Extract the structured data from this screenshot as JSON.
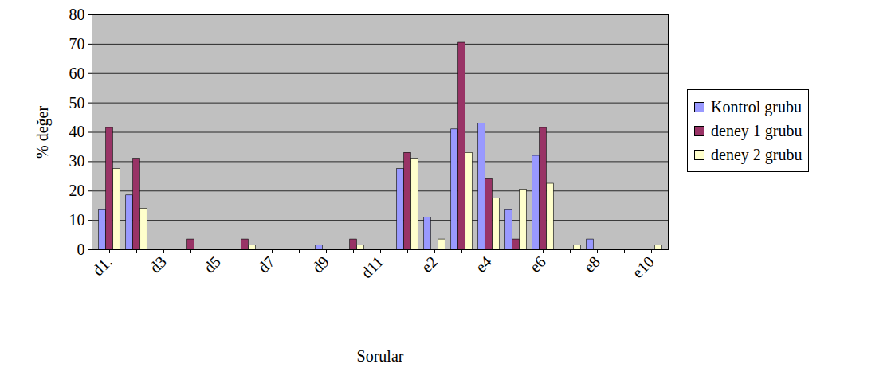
{
  "chart_data": {
    "type": "bar",
    "x_label": "Sorular",
    "y_label": "% değer",
    "categories": [
      "d1.",
      null,
      "d3",
      null,
      "d5",
      null,
      "d7",
      null,
      "d9",
      null,
      "d11",
      null,
      "e2",
      null,
      "e4",
      null,
      "e6",
      null,
      "e8",
      null,
      "e10"
    ],
    "series": [
      {
        "name": "Kontrol grubu",
        "color": "#9999ff",
        "values": [
          13.5,
          18.5,
          0,
          0,
          0,
          0,
          0,
          0,
          1.5,
          0,
          0,
          27.5,
          11,
          41,
          43,
          13.5,
          32,
          0,
          3.5,
          0,
          0
        ]
      },
      {
        "name": "deney 1 grubu",
        "color": "#993366",
        "values": [
          41.5,
          31,
          0,
          3.5,
          0,
          3.5,
          0,
          0,
          0,
          3.5,
          0,
          33,
          0,
          70.5,
          24,
          3.5,
          41.5,
          0,
          0,
          0,
          0
        ]
      },
      {
        "name": "deney 2 grubu",
        "color": "#ffffcc",
        "values": [
          27.5,
          14,
          0,
          0,
          0,
          1.5,
          0,
          0,
          0,
          1.5,
          0,
          31,
          3.5,
          33,
          17.5,
          20.5,
          22.5,
          1.5,
          0,
          0,
          1.5
        ]
      }
    ],
    "ylim": [
      0,
      80
    ],
    "yticks": [
      0,
      10,
      20,
      30,
      40,
      50,
      60,
      70,
      80
    ],
    "grid": true,
    "legend": "right"
  }
}
